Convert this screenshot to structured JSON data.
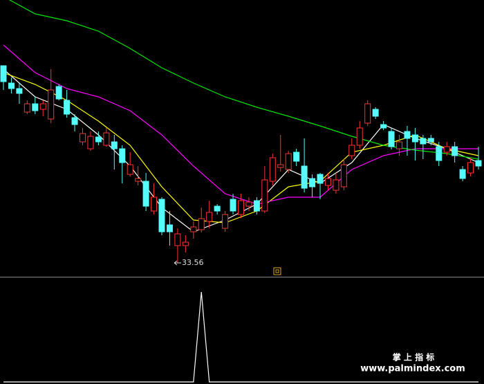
{
  "chart_data": {
    "type": "candlestick",
    "up_color": "#ff3232",
    "down_color": "#54fcfc",
    "ylim": [
      33.16,
      41.16
    ],
    "open": [
      39.26,
      38.76,
      38.6,
      37.92,
      38.16,
      38.0,
      37.72,
      38.66,
      38.26,
      37.76,
      37.06,
      36.86,
      37.2,
      36.96,
      37.06,
      36.86,
      36.12,
      35.92,
      35.92,
      35.06,
      35.4,
      34.66,
      34.06,
      34.06,
      34.46,
      34.52,
      34.76,
      35.2,
      34.56,
      35.4,
      34.96,
      35.2,
      35.36,
      35.06,
      35.92,
      36.32,
      36.26,
      36.76,
      36.36,
      36.0,
      36.12,
      35.8,
      35.66,
      35.76,
      36.66,
      36.96,
      37.6,
      38.0,
      37.56,
      37.36,
      36.86,
      37.36,
      37.26,
      37.16,
      37.16,
      36.92,
      36.76,
      36.92,
      36.26,
      36.16,
      36.52
    ],
    "high": [
      39.26,
      38.92,
      38.76,
      38.26,
      38.36,
      38.26,
      39.16,
      38.72,
      38.56,
      37.86,
      37.46,
      37.36,
      37.36,
      37.46,
      37.26,
      36.96,
      36.76,
      36.36,
      36.16,
      35.86,
      35.46,
      35.06,
      34.56,
      34.36,
      34.76,
      35.16,
      35.36,
      35.26,
      35.06,
      35.56,
      35.56,
      35.46,
      35.46,
      36.36,
      36.72,
      37.26,
      36.8,
      36.86,
      37.16,
      36.12,
      36.16,
      36.16,
      36.16,
      36.56,
      37.16,
      37.66,
      38.26,
      38.06,
      37.66,
      37.46,
      37.26,
      37.52,
      37.46,
      37.26,
      37.26,
      37.06,
      37.06,
      37.06,
      36.36,
      36.6,
      36.92
    ],
    "low": [
      38.56,
      38.46,
      38.16,
      37.86,
      37.86,
      37.8,
      37.6,
      38.26,
      37.76,
      37.36,
      36.96,
      36.8,
      36.96,
      36.92,
      36.26,
      35.86,
      36.06,
      35.8,
      35.06,
      34.96,
      34.36,
      34.06,
      33.56,
      33.86,
      34.26,
      34.44,
      34.56,
      34.96,
      34.46,
      34.96,
      34.86,
      35.06,
      34.96,
      35.0,
      35.8,
      36.2,
      36.16,
      36.36,
      35.6,
      35.46,
      35.4,
      35.66,
      35.56,
      35.66,
      36.56,
      36.86,
      37.52,
      37.72,
      37.4,
      36.84,
      36.66,
      36.66,
      36.52,
      36.56,
      36.96,
      36.36,
      36.66,
      36.46,
      35.92,
      36.06,
      36.26
    ],
    "close": [
      38.8,
      38.6,
      38.46,
      38.16,
      37.96,
      38.16,
      38.56,
      38.3,
      37.86,
      37.56,
      37.3,
      37.22,
      37.06,
      37.32,
      36.86,
      36.46,
      36.4,
      36.0,
      35.2,
      35.46,
      34.46,
      34.46,
      34.4,
      34.16,
      34.6,
      34.84,
      35.02,
      35.06,
      34.96,
      35.06,
      35.36,
      35.32,
      35.06,
      35.96,
      36.6,
      36.4,
      36.72,
      36.5,
      35.72,
      35.76,
      35.86,
      36.0,
      35.96,
      36.4,
      36.96,
      37.46,
      38.16,
      37.8,
      37.46,
      36.92,
      37.06,
      37.16,
      37.06,
      37.0,
      37.06,
      36.52,
      36.92,
      36.66,
      36.0,
      36.46,
      36.36
    ],
    "lines": [
      {
        "color": "#ffffff",
        "x": [
          0,
          4,
          8,
          12,
          16,
          20,
          24,
          28,
          32,
          36,
          40,
          44,
          48,
          52,
          56,
          60
        ],
        "values": [
          39.16,
          38.36,
          38.0,
          37.26,
          36.36,
          35.16,
          34.46,
          34.8,
          35.26,
          36.26,
          35.86,
          36.46,
          37.56,
          37.16,
          36.86,
          36.46
        ]
      },
      {
        "color": "#ffff00",
        "x": [
          0,
          4,
          8,
          12,
          16,
          20,
          24,
          28,
          32,
          36,
          40,
          44,
          48,
          52,
          56,
          60
        ],
        "values": [
          39.06,
          38.72,
          38.26,
          37.66,
          36.96,
          35.76,
          34.8,
          34.72,
          35.06,
          35.76,
          35.92,
          36.76,
          36.96,
          37.26,
          36.86,
          36.66
        ]
      },
      {
        "color": "#ff00ff",
        "x": [
          0,
          4,
          8,
          12,
          16,
          20,
          24,
          28,
          32,
          36,
          40,
          44,
          48,
          52,
          56,
          60
        ],
        "values": [
          39.86,
          39.06,
          38.6,
          38.36,
          37.96,
          37.26,
          36.36,
          35.56,
          35.26,
          35.46,
          35.46,
          36.26,
          36.66,
          36.86,
          36.86,
          36.86
        ]
      },
      {
        "color": "#00e600",
        "x": [
          0,
          4,
          8,
          12,
          16,
          20,
          24,
          28,
          32,
          36,
          40,
          44,
          48,
          52,
          56,
          60
        ],
        "values": [
          41.26,
          40.76,
          40.56,
          40.26,
          39.76,
          39.2,
          38.76,
          38.36,
          38.06,
          37.8,
          37.52,
          37.22,
          36.96,
          36.82,
          36.72,
          36.56
        ]
      }
    ],
    "indicator": {
      "color": "#ffffff",
      "ylim": [
        0,
        1
      ],
      "values": [
        0,
        0,
        0,
        0,
        0,
        0,
        0,
        0,
        0,
        0,
        0,
        0,
        0,
        0,
        0,
        0,
        0,
        0,
        0,
        0,
        0,
        0,
        0,
        0,
        0,
        1,
        0,
        0,
        0,
        0,
        0,
        0,
        0,
        0,
        0,
        0,
        0,
        0,
        0,
        0,
        0,
        0,
        0,
        0,
        0,
        0,
        0,
        0,
        0,
        0,
        0,
        0,
        0,
        0,
        0,
        0,
        0,
        0,
        0,
        0,
        0
      ]
    },
    "annotations": [
      "掌 上 指 标",
      "www.palmindex.com"
    ]
  }
}
